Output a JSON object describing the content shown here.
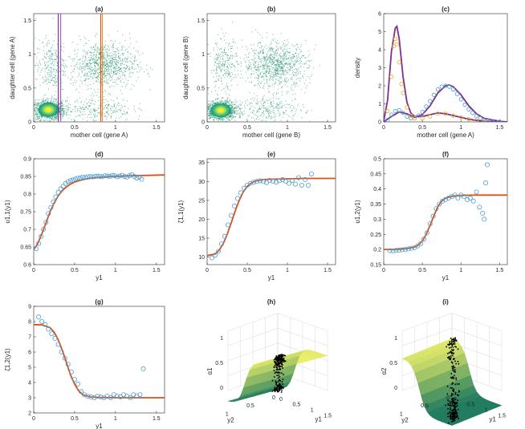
{
  "figure": {
    "panels": [
      {
        "id": "a",
        "title": "(a)"
      },
      {
        "id": "b",
        "title": "(b)"
      },
      {
        "id": "c",
        "title": "(c)"
      },
      {
        "id": "d",
        "title": "(d)"
      },
      {
        "id": "e",
        "title": "(e)"
      },
      {
        "id": "f",
        "title": "(f)"
      },
      {
        "id": "g",
        "title": "(g)"
      },
      {
        "id": "h",
        "title": "(h)"
      },
      {
        "id": "i",
        "title": "(i)"
      }
    ]
  },
  "colors": {
    "scatter_green": "#1a8a64",
    "density_high": "#f2f224",
    "fit_line": "#d95319",
    "data_circle": "#4a9fd6",
    "purple_line": "#7e2f8e",
    "orange_dots": "#edb120",
    "surface_low": "#1f7a5e",
    "surface_high": "#eef06a",
    "points_3d": "#000000"
  },
  "chart_data": [
    {
      "id": "a",
      "type": "scatter",
      "title": "(a)",
      "xlabel": "mother cell (gene A)",
      "ylabel": "daughter cell (gene A)",
      "xlim": [
        0,
        1.6
      ],
      "ylim": [
        0,
        1.6
      ],
      "xticks": [
        "0",
        "0.5",
        "1",
        "1.5"
      ],
      "yticks": [
        "0",
        "0.5",
        "1",
        "1.5"
      ],
      "clusters": [
        {
          "center": [
            0.18,
            0.18
          ],
          "spread": [
            0.1,
            0.07
          ],
          "weight": 0.45
        },
        {
          "center": [
            0.85,
            0.85
          ],
          "spread": [
            0.2,
            0.17
          ],
          "weight": 0.35
        },
        {
          "center": [
            0.2,
            0.82
          ],
          "spread": [
            0.09,
            0.2
          ],
          "weight": 0.1
        },
        {
          "center": [
            0.8,
            0.2
          ],
          "spread": [
            0.2,
            0.09
          ],
          "weight": 0.1
        }
      ],
      "vlines": [
        {
          "x": 0.3,
          "color": "#7e2f8e"
        },
        {
          "x": 0.33,
          "color": "#9b59b6"
        },
        {
          "x": 0.82,
          "color": "#d95319"
        },
        {
          "x": 0.84,
          "color": "#e8902a"
        }
      ]
    },
    {
      "id": "b",
      "type": "scatter",
      "title": "(b)",
      "xlabel": "mother cell (gene  B)",
      "ylabel": "daughter cell (gene B)",
      "xlim": [
        0,
        1.6
      ],
      "ylim": [
        0,
        1.6
      ],
      "xticks": [
        "0",
        "0.5",
        "1",
        "1.5"
      ],
      "yticks": [
        "0",
        "0.5",
        "1",
        "1.5"
      ],
      "clusters": [
        {
          "center": [
            0.17,
            0.17
          ],
          "spread": [
            0.1,
            0.07
          ],
          "weight": 0.45
        },
        {
          "center": [
            0.85,
            0.85
          ],
          "spread": [
            0.2,
            0.17
          ],
          "weight": 0.35
        },
        {
          "center": [
            0.2,
            0.82
          ],
          "spread": [
            0.09,
            0.2
          ],
          "weight": 0.1
        },
        {
          "center": [
            0.8,
            0.2
          ],
          "spread": [
            0.2,
            0.09
          ],
          "weight": 0.1
        }
      ]
    },
    {
      "id": "c",
      "type": "line",
      "title": "(c)",
      "xlabel": "mother cell (gene A)",
      "ylabel": "density",
      "xlim": [
        0,
        1.6
      ],
      "ylim": [
        0,
        6
      ],
      "xticks": [
        "0",
        "0.5",
        "1",
        "1.5"
      ],
      "yticks": [
        "0",
        "1",
        "2",
        "3",
        "4",
        "5",
        "6"
      ],
      "series": [
        {
          "style": "line",
          "color": "#7e2f8e",
          "x": [
            0,
            0.05,
            0.1,
            0.15,
            0.17,
            0.2,
            0.25,
            0.3,
            0.35,
            0.4,
            0.5,
            0.6,
            0.7,
            0.8,
            0.9,
            1.0,
            1.1,
            1.2,
            1.3,
            1.5,
            1.6
          ],
          "y": [
            0.05,
            1.2,
            3.9,
            5.2,
            5.3,
            4.6,
            2.5,
            1.1,
            0.5,
            0.3,
            0.3,
            0.4,
            0.5,
            0.45,
            0.35,
            0.25,
            0.15,
            0.08,
            0.04,
            0.01,
            0
          ]
        },
        {
          "style": "line",
          "color": "#7e2f8e",
          "x": [
            0,
            0.1,
            0.2,
            0.3,
            0.4,
            0.5,
            0.6,
            0.7,
            0.8,
            0.85,
            0.9,
            1.0,
            1.1,
            1.2,
            1.3,
            1.5,
            1.6
          ],
          "y": [
            0,
            0.3,
            0.55,
            0.45,
            0.25,
            0.4,
            0.9,
            1.6,
            2.0,
            2.05,
            1.95,
            1.5,
            0.9,
            0.45,
            0.2,
            0.03,
            0
          ]
        },
        {
          "style": "circles",
          "color": "#4a9fd6",
          "x": [
            0.05,
            0.1,
            0.15,
            0.2,
            0.25,
            0.3,
            0.35,
            0.4,
            0.45,
            0.5,
            0.55,
            0.6,
            0.65,
            0.7,
            0.75,
            0.8,
            0.85,
            0.9,
            0.95,
            1.0,
            1.05,
            1.1,
            1.15,
            1.2,
            1.25,
            1.3,
            1.35,
            1.4,
            1.45,
            1.5
          ],
          "y": [
            0.1,
            0.4,
            0.6,
            0.65,
            0.5,
            0.3,
            0.2,
            0.2,
            0.35,
            0.55,
            0.85,
            1.15,
            1.5,
            1.8,
            1.95,
            2.0,
            1.95,
            1.8,
            1.55,
            1.25,
            0.95,
            0.7,
            0.5,
            0.32,
            0.2,
            0.12,
            0.07,
            0.04,
            0.02,
            0.01
          ]
        },
        {
          "style": "circles",
          "color": "#edb120",
          "x": [
            0.05,
            0.1,
            0.13,
            0.15,
            0.17,
            0.2,
            0.23,
            0.25,
            0.3,
            0.35,
            0.4,
            0.5,
            0.6,
            0.7,
            0.8,
            0.9,
            1.0,
            1.1,
            1.2,
            1.3
          ],
          "y": [
            0.6,
            2.5,
            4.2,
            4.6,
            4.3,
            3.3,
            2.1,
            1.6,
            0.8,
            0.35,
            0.2,
            0.2,
            0.3,
            0.45,
            0.45,
            0.35,
            0.25,
            0.15,
            0.08,
            0.04
          ]
        }
      ]
    },
    {
      "id": "d",
      "type": "scatter",
      "title": "(d)",
      "xlabel": "y1",
      "ylabel": "υ1,1(y1)",
      "xlim": [
        0,
        1.6
      ],
      "ylim": [
        0.6,
        0.9
      ],
      "xticks": [
        "0",
        "0.5",
        "1",
        "1.5"
      ],
      "yticks": [
        "0.6",
        "0.65",
        "0.7",
        "0.75",
        "0.8",
        "0.85",
        "0.9"
      ],
      "series": [
        {
          "style": "line",
          "color": "#d95319",
          "x": [
            0,
            0.05,
            0.1,
            0.15,
            0.2,
            0.25,
            0.3,
            0.35,
            0.4,
            0.45,
            0.5,
            0.6,
            0.7,
            0.8,
            0.9,
            1.0,
            1.2,
            1.4,
            1.6
          ],
          "y": [
            0.642,
            0.66,
            0.688,
            0.718,
            0.75,
            0.775,
            0.795,
            0.81,
            0.82,
            0.828,
            0.834,
            0.841,
            0.845,
            0.847,
            0.849,
            0.85,
            0.852,
            0.853,
            0.854
          ]
        },
        {
          "style": "circles",
          "color": "#4a9fd6",
          "x": [
            0.03,
            0.06,
            0.09,
            0.12,
            0.15,
            0.18,
            0.21,
            0.24,
            0.27,
            0.3,
            0.33,
            0.36,
            0.39,
            0.42,
            0.45,
            0.48,
            0.51,
            0.54,
            0.57,
            0.6,
            0.63,
            0.66,
            0.69,
            0.72,
            0.75,
            0.78,
            0.81,
            0.84,
            0.87,
            0.9,
            0.93,
            0.96,
            0.99,
            1.02,
            1.05,
            1.08,
            1.11,
            1.14,
            1.17,
            1.2,
            1.23,
            1.26,
            1.29,
            1.32
          ],
          "y": [
            0.645,
            0.66,
            0.68,
            0.7,
            0.72,
            0.745,
            0.762,
            0.778,
            0.792,
            0.805,
            0.815,
            0.822,
            0.83,
            0.835,
            0.838,
            0.84,
            0.843,
            0.845,
            0.846,
            0.848,
            0.847,
            0.849,
            0.85,
            0.849,
            0.85,
            0.851,
            0.85,
            0.849,
            0.852,
            0.851,
            0.85,
            0.853,
            0.852,
            0.849,
            0.851,
            0.853,
            0.85,
            0.848,
            0.852,
            0.855,
            0.85,
            0.845,
            0.848,
            0.842
          ]
        }
      ]
    },
    {
      "id": "e",
      "type": "scatter",
      "title": "(e)",
      "xlabel": "y1",
      "ylabel": "ζ1,1(y1)",
      "xlim": [
        0,
        1.6
      ],
      "ylim": [
        8,
        36
      ],
      "xticks": [
        "0",
        "0.5",
        "1",
        "1.5"
      ],
      "yticks": [
        "10",
        "15",
        "20",
        "25",
        "30",
        "35"
      ],
      "series": [
        {
          "style": "line",
          "color": "#d95319",
          "x": [
            0,
            0.1,
            0.15,
            0.2,
            0.25,
            0.3,
            0.35,
            0.4,
            0.45,
            0.5,
            0.55,
            0.6,
            0.7,
            0.8,
            1.0,
            1.2,
            1.4,
            1.6
          ],
          "y": [
            10.4,
            10.8,
            11.8,
            13.5,
            16,
            19,
            22.2,
            25,
            27.2,
            28.7,
            29.6,
            30.1,
            30.5,
            30.6,
            30.7,
            30.8,
            30.8,
            30.8
          ]
        },
        {
          "style": "circles",
          "color": "#4a9fd6",
          "x": [
            0.06,
            0.1,
            0.14,
            0.18,
            0.22,
            0.26,
            0.3,
            0.34,
            0.38,
            0.42,
            0.46,
            0.5,
            0.54,
            0.58,
            0.62,
            0.66,
            0.7,
            0.74,
            0.78,
            0.82,
            0.86,
            0.9,
            0.94,
            0.98,
            1.02,
            1.06,
            1.1,
            1.14,
            1.18,
            1.22,
            1.26,
            1.3
          ],
          "y": [
            9.8,
            10.5,
            11.5,
            13.5,
            15.5,
            18.5,
            21,
            23.5,
            25.5,
            27,
            28.2,
            29,
            29.5,
            29.8,
            30,
            30.2,
            30,
            29.7,
            30.3,
            30.1,
            29.8,
            30.2,
            30.5,
            30,
            29.5,
            30.3,
            29.3,
            31,
            29,
            30.5,
            29,
            32
          ]
        }
      ]
    },
    {
      "id": "f",
      "type": "scatter",
      "title": "(f)",
      "xlabel": "y1",
      "ylabel": "υ1,2(y1)",
      "xlim": [
        0,
        1.6
      ],
      "ylim": [
        0.15,
        0.5
      ],
      "xticks": [
        "0",
        "0.5",
        "1",
        "1.5"
      ],
      "yticks": [
        "0.15",
        "0.2",
        "0.25",
        "0.3",
        "0.35",
        "0.4",
        "0.45",
        "0.5"
      ],
      "series": [
        {
          "style": "line",
          "color": "#d95319",
          "x": [
            0,
            0.2,
            0.3,
            0.4,
            0.45,
            0.5,
            0.55,
            0.6,
            0.65,
            0.7,
            0.75,
            0.8,
            0.9,
            1.0,
            1.2,
            1.6
          ],
          "y": [
            0.2,
            0.201,
            0.203,
            0.208,
            0.215,
            0.228,
            0.25,
            0.28,
            0.312,
            0.342,
            0.36,
            0.37,
            0.377,
            0.379,
            0.38,
            0.38
          ]
        },
        {
          "style": "circles",
          "color": "#4a9fd6",
          "x": [
            0.08,
            0.12,
            0.16,
            0.2,
            0.24,
            0.28,
            0.32,
            0.36,
            0.4,
            0.44,
            0.48,
            0.52,
            0.56,
            0.6,
            0.64,
            0.68,
            0.72,
            0.76,
            0.8,
            0.84,
            0.88,
            0.92,
            0.96,
            1.0,
            1.04,
            1.08,
            1.12,
            1.16,
            1.2,
            1.24,
            1.28,
            1.32,
            1.34,
            1.3
          ],
          "y": [
            0.196,
            0.195,
            0.197,
            0.198,
            0.199,
            0.2,
            0.202,
            0.204,
            0.206,
            0.212,
            0.22,
            0.235,
            0.255,
            0.285,
            0.31,
            0.335,
            0.35,
            0.36,
            0.365,
            0.37,
            0.375,
            0.38,
            0.37,
            0.38,
            0.375,
            0.365,
            0.37,
            0.36,
            0.39,
            0.34,
            0.32,
            0.42,
            0.48,
            0.3
          ]
        }
      ]
    },
    {
      "id": "g",
      "type": "scatter",
      "title": "(g)",
      "xlabel": "y1",
      "ylabel": "ζ1,2(y1)",
      "xlim": [
        0,
        1.6
      ],
      "ylim": [
        2,
        9
      ],
      "xticks": [
        "0",
        "0.5",
        "1",
        "1.5"
      ],
      "yticks": [
        "2",
        "3",
        "4",
        "5",
        "6",
        "7",
        "8",
        "9"
      ],
      "series": [
        {
          "style": "line",
          "color": "#d95319",
          "x": [
            0,
            0.1,
            0.2,
            0.25,
            0.3,
            0.35,
            0.4,
            0.45,
            0.5,
            0.55,
            0.6,
            0.7,
            0.8,
            1.0,
            1.2,
            1.6
          ],
          "y": [
            7.8,
            7.78,
            7.6,
            7.3,
            6.8,
            6.1,
            5.3,
            4.5,
            3.9,
            3.45,
            3.2,
            3.05,
            3.02,
            3.0,
            3.0,
            3.0
          ]
        },
        {
          "style": "circles",
          "color": "#4a9fd6",
          "x": [
            0.06,
            0.1,
            0.14,
            0.18,
            0.22,
            0.26,
            0.3,
            0.34,
            0.38,
            0.42,
            0.46,
            0.5,
            0.54,
            0.58,
            0.62,
            0.66,
            0.7,
            0.74,
            0.78,
            0.82,
            0.86,
            0.9,
            0.94,
            0.98,
            1.02,
            1.06,
            1.1,
            1.14,
            1.18,
            1.22,
            1.26,
            1.3,
            1.34
          ],
          "y": [
            8.3,
            8.0,
            7.8,
            7.5,
            7.2,
            6.9,
            6.5,
            6.0,
            5.6,
            5.2,
            4.7,
            4.2,
            3.9,
            3.4,
            3.2,
            3.1,
            3.05,
            3.0,
            3.1,
            3.05,
            3.0,
            3.1,
            3.0,
            3.2,
            3.1,
            3.05,
            3.2,
            3.1,
            3.0,
            3.2,
            3.1,
            3.2,
            4.9
          ]
        }
      ]
    },
    {
      "id": "h",
      "type": "surface",
      "title": "(h)",
      "xlabel": "y1",
      "ylabel": "y2",
      "zlabel": "α1",
      "xticks": [
        "0",
        "0.5",
        "1",
        "1.5"
      ],
      "yticks": [
        "0",
        "0.5",
        "1"
      ],
      "zticks": [
        "0",
        "0.5",
        "1"
      ],
      "surface_shape": "rising-sigmoid"
    },
    {
      "id": "i",
      "type": "surface",
      "title": "(i)",
      "xlabel": "y1",
      "ylabel": "y2",
      "zlabel": "α2",
      "xticks": [
        "0",
        "0.5",
        "1",
        "1.5"
      ],
      "yticks": [
        "0",
        "0.5",
        "1"
      ],
      "zticks": [
        "0",
        "0.5",
        "1"
      ],
      "surface_shape": "falling-sigmoid"
    }
  ]
}
